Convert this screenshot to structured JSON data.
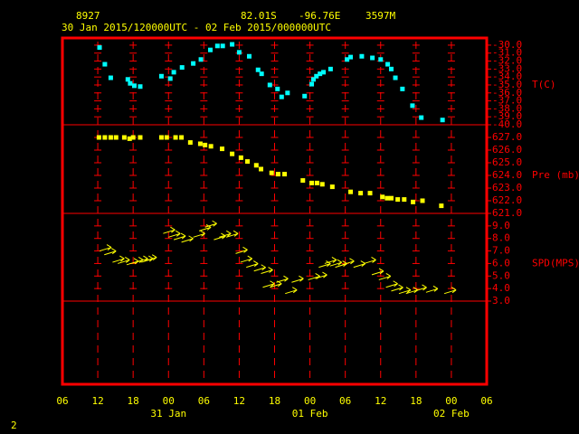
{
  "chart_data": {
    "type": "meteogram",
    "station": "8927",
    "latitude": "82.01S",
    "longitude": "-96.76E",
    "elevation": "3597M",
    "period": "30 Jan 2015/120000UTC - 02 Feb 2015/000000UTC",
    "page_number": "2",
    "frame_color": "#ff0000",
    "xlim": [
      6,
      78
    ],
    "xticks": [
      {
        "value": 6,
        "label": "06"
      },
      12,
      18,
      {
        "value": 24,
        "label": "00"
      },
      {
        "value": 30,
        "label": "06"
      },
      {
        "value": 36,
        "label": "12"
      },
      {
        "value": 42,
        "label": "18"
      },
      {
        "value": 48,
        "label": "00"
      },
      {
        "value": 54,
        "label": "06"
      },
      {
        "value": 60,
        "label": "12"
      },
      {
        "value": 66,
        "label": "18"
      },
      {
        "value": 72,
        "label": "00"
      },
      {
        "value": 78,
        "label": "06"
      }
    ],
    "date_labels": [
      {
        "x": 24,
        "label": "31 Jan"
      },
      {
        "x": 48,
        "label": "01 Feb"
      },
      {
        "x": 72,
        "label": "02 Feb"
      }
    ],
    "panels": [
      {
        "type": "scatter",
        "label": "T(C)",
        "ylim": [
          -40,
          -29.1
        ],
        "yticks": [
          {
            "value": -30,
            "label": "-30.0"
          },
          {
            "value": -31,
            "label": "-31.0"
          },
          {
            "value": -32,
            "label": "-32.0"
          },
          {
            "value": -33,
            "label": "-33.0"
          },
          {
            "value": -34,
            "label": "-34.0"
          },
          {
            "value": -35,
            "label": "-35.0"
          },
          {
            "value": -36,
            "label": "-36.0"
          },
          {
            "value": -37,
            "label": "-37.0"
          },
          {
            "value": -38,
            "label": "-38.0"
          },
          {
            "value": -39,
            "label": "-39.0"
          },
          {
            "value": -40,
            "label": "-40.0"
          }
        ],
        "series": [
          {
            "color": "#00ffff",
            "marker": "square",
            "x": [
              12.3,
              13.2,
              14.2,
              17.1,
              17.5,
              18.2,
              19.2,
              22.8,
              24.3,
              24.9,
              26.3,
              28.2,
              29.5,
              31.1,
              32.3,
              33.2,
              34.8,
              36.0,
              37.7,
              39.2,
              39.8,
              41.2,
              42.5,
              43.2,
              44.2,
              47.1,
              48.3,
              48.6,
              49.1,
              49.7,
              50.3,
              51.5,
              54.3,
              54.9,
              56.8,
              58.6,
              60.0,
              61.2,
              61.8,
              62.5,
              63.7,
              65.4,
              66.9,
              70.5
            ],
            "values": [
              -30.3,
              -32.4,
              -34.1,
              -34.3,
              -34.8,
              -35.1,
              -35.2,
              -33.9,
              -34.2,
              -33.4,
              -32.8,
              -32.3,
              -31.8,
              -30.6,
              -30.1,
              -30.1,
              -29.9,
              -30.9,
              -31.4,
              -33.1,
              -33.6,
              -35.0,
              -35.5,
              -36.5,
              -36.0,
              -36.4,
              -34.9,
              -34.3,
              -33.9,
              -33.6,
              -33.4,
              -33.0,
              -31.8,
              -31.5,
              -31.4,
              -31.6,
              -31.8,
              -32.4,
              -33.0,
              -34.1,
              -35.5,
              -37.6,
              -39.1,
              -39.4
            ]
          }
        ]
      },
      {
        "type": "scatter",
        "label": "Pre (mb)",
        "ylim": [
          621,
          628
        ],
        "yticks": [
          {
            "value": 627,
            "label": "627.0"
          },
          {
            "value": 626,
            "label": "626.0"
          },
          {
            "value": 625,
            "label": "625.0"
          },
          {
            "value": 624,
            "label": "624.0"
          },
          {
            "value": 623,
            "label": "623.0"
          },
          {
            "value": 622,
            "label": "622.0"
          },
          {
            "value": 621,
            "label": "621.0"
          }
        ],
        "series": [
          {
            "color": "#ffff00",
            "marker": "square",
            "x": [
              12.2,
              13.2,
              14.2,
              15.1,
              16.5,
              17.4,
              18.0,
              19.2,
              22.8,
              23.7,
              25.2,
              26.2,
              27.7,
              29.4,
              30.2,
              31.2,
              33.1,
              34.8,
              36.3,
              37.4,
              38.9,
              39.7,
              41.5,
              42.6,
              43.7,
              46.8,
              48.3,
              49.2,
              50.1,
              51.8,
              54.9,
              56.6,
              58.2,
              60.3,
              61.1,
              61.8,
              62.9,
              64.0,
              65.5,
              67.1,
              70.3
            ],
            "values": [
              627.0,
              627.0,
              627.0,
              627.0,
              627.0,
              626.9,
              627.0,
              627.0,
              627.0,
              627.0,
              627.0,
              627.0,
              626.6,
              626.5,
              626.4,
              626.3,
              626.1,
              625.7,
              625.4,
              625.1,
              624.8,
              624.5,
              624.2,
              624.1,
              624.1,
              623.6,
              623.4,
              623.4,
              623.3,
              623.1,
              622.7,
              622.6,
              622.6,
              622.3,
              622.2,
              622.2,
              622.1,
              622.1,
              621.9,
              622.0,
              621.6
            ]
          }
        ]
      },
      {
        "type": "arrows",
        "label": "SPD(MPS)",
        "ylim": [
          3,
          10
        ],
        "yticks": [
          {
            "value": 9,
            "label": "9.0"
          },
          {
            "value": 8,
            "label": "8.0"
          },
          {
            "value": 7,
            "label": "7.0"
          },
          {
            "value": 6,
            "label": "6.0"
          },
          {
            "value": 5,
            "label": "5.0"
          },
          {
            "value": 4,
            "label": "4.0"
          },
          {
            "value": 3,
            "label": "3.0"
          }
        ],
        "series": [
          {
            "color": "#ffff00",
            "marker": "arrow",
            "x": [
              12.3,
              13.1,
              14.5,
              15.4,
              16.9,
              17.7,
              18.5,
              19.4,
              20.0,
              23.1,
              24.0,
              24.9,
              26.2,
              28.2,
              29.2,
              30.2,
              31.7,
              32.6,
              33.8,
              35.4,
              36.2,
              37.2,
              38.5,
              39.7,
              40.0,
              41.2,
              42.3,
              43.8,
              44.9,
              47.7,
              48.9,
              49.5,
              50.5,
              51.4,
              52.3,
              53.5,
              55.4,
              57.2,
              58.5,
              59.7,
              60.9,
              61.8,
              63.1,
              64.3,
              65.8,
              67.7,
              70.8
            ],
            "values": [
              7.0,
              6.7,
              6.1,
              6.0,
              5.9,
              6.0,
              6.1,
              6.1,
              6.2,
              8.4,
              8.1,
              7.9,
              7.7,
              8.1,
              8.6,
              8.9,
              7.9,
              8.1,
              8.1,
              6.8,
              6.1,
              5.7,
              5.4,
              5.2,
              4.1,
              4.1,
              4.5,
              3.6,
              4.5,
              4.7,
              4.8,
              5.7,
              6.0,
              5.8,
              5.7,
              5.9,
              5.7,
              6.0,
              5.1,
              4.7,
              4.1,
              3.8,
              3.6,
              3.6,
              3.8,
              3.7,
              3.6
            ]
          }
        ]
      }
    ]
  }
}
